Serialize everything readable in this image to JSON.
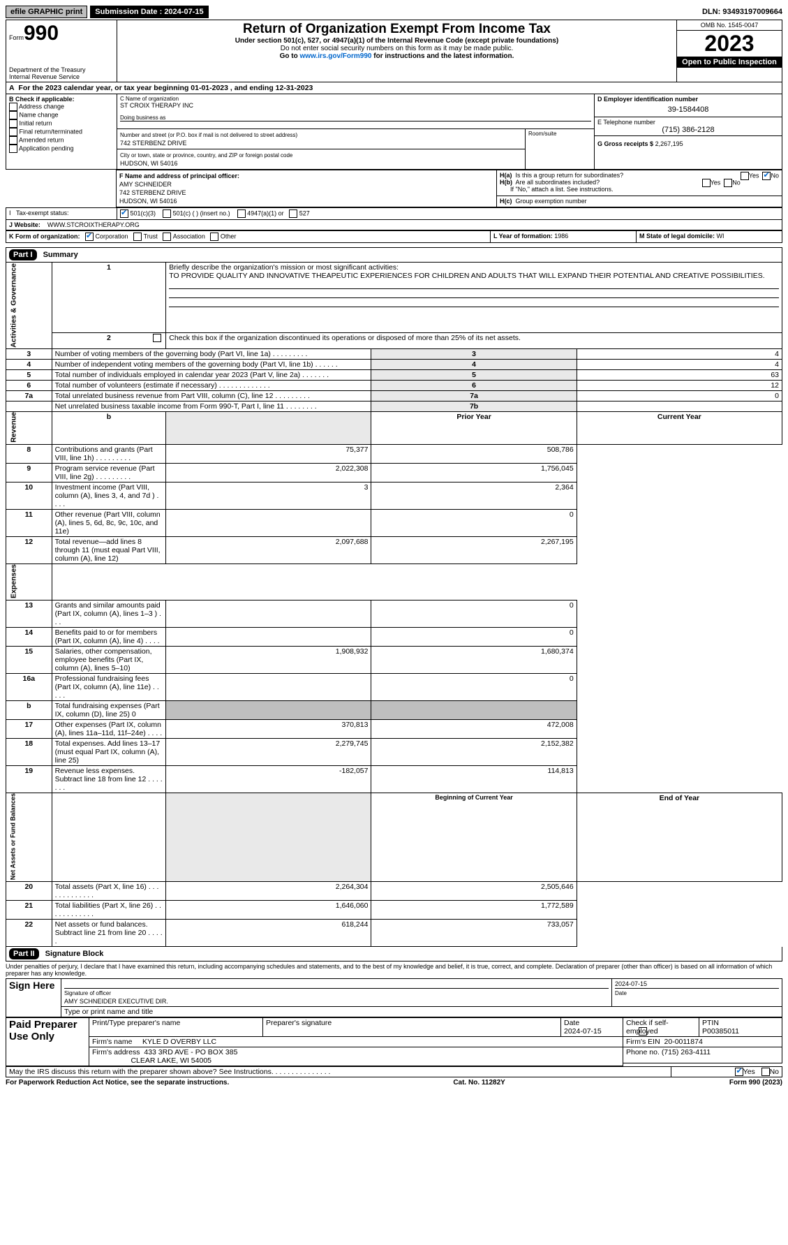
{
  "header": {
    "efile": "efile GRAPHIC print",
    "subDateLabel": "Submission Date : 2024-07-15",
    "dln": "DLN: 93493197009664"
  },
  "mast": {
    "formWord": "Form",
    "formNum": "990",
    "dept": "Department of the Treasury\nInternal Revenue Service",
    "title": "Return of Organization Exempt From Income Tax",
    "sub1": "Under section 501(c), 527, or 4947(a)(1) of the Internal Revenue Code (except private foundations)",
    "sub2": "Do not enter social security numbers on this form as it may be made public.",
    "sub3_pre": "Go to ",
    "sub3_link": "www.irs.gov/Form990",
    "sub3_post": " for instructions and the latest information.",
    "omb": "OMB No. 1545-0047",
    "year": "2023",
    "openPublic": "Open to Public Inspection"
  },
  "lineA": {
    "text_pre": "For the 2023 calendar year, or tax year beginning ",
    "beg": "01-01-2023",
    "mid": " , and ending ",
    "end": "12-31-2023"
  },
  "boxB": {
    "title": "B Check if applicable:",
    "items": [
      "Address change",
      "Name change",
      "Initial return",
      "Final return/terminated",
      "Amended return",
      "Application pending"
    ]
  },
  "boxC": {
    "orgLabel": "C Name of organization",
    "org": "ST CROIX THERAPY INC",
    "dbaLabel": "Doing business as",
    "addrLabel": "Number and street (or P.O. box if mail is not delivered to street address)",
    "suiteLabel": "Room/suite",
    "addr": "742 STERBENZ DRIVE",
    "cityLabel": "City or town, state or province, country, and ZIP or foreign postal code",
    "city": "HUDSON, WI  54016"
  },
  "boxD": {
    "label": "D Employer identification number",
    "val": "39-1584408"
  },
  "boxE": {
    "label": "E Telephone number",
    "val": "(715) 386-2128"
  },
  "boxG": {
    "label": "G Gross receipts $",
    "val": "2,267,195"
  },
  "boxF": {
    "label": "F Name and address of principal officer:",
    "name": "AMY SCHNEIDER",
    "addr": "742 STERBENZ DRIVE",
    "city": "HUDSON, WI  54016"
  },
  "boxH": {
    "aLabel": "H(a)",
    "aText": "Is this a group return for subordinates?",
    "bLabel": "H(b)",
    "bText": "Are all subordinates included?",
    "bNote": "If \"No,\" attach a list. See instructions.",
    "cLabel": "H(c)",
    "cText": "Group exemption number",
    "yes": "Yes",
    "no": "No"
  },
  "boxI": {
    "label": "Tax-exempt status:",
    "opts": [
      "501(c)(3)",
      "501(c) (  ) (insert no.)",
      "4947(a)(1) or",
      "527"
    ]
  },
  "boxJ": {
    "label": "J    Website:",
    "val": "WWW.STCROIXTHERAPY.ORG"
  },
  "boxK": {
    "label": "K Form of organization:",
    "opts": [
      "Corporation",
      "Trust",
      "Association",
      "Other"
    ]
  },
  "boxL": {
    "label": "L Year of formation:",
    "val": "1986"
  },
  "boxM": {
    "label": "M State of legal domicile:",
    "val": "WI"
  },
  "part1": {
    "hdr": "Part I",
    "title": "Summary",
    "side1": "Activities & Governance",
    "side2": "Revenue",
    "side3": "Expenses",
    "side4": "Net Assets or Fund Balances",
    "l1": "Briefly describe the organization's mission or most significant activities:",
    "l1val": "TO PROVIDE QUALITY AND INNOVATIVE THEAPEUTIC EXPERIENCES FOR CHILDREN AND ADULTS THAT WILL EXPAND THEIR POTENTIAL AND CREATIVE POSSIBILITIES.",
    "l2": "Check this box    if the organization discontinued its operations or disposed of more than 25% of its net assets.",
    "rows_ag": [
      {
        "n": "3",
        "t": "Number of voting members of the governing body (Part VI, line 1a)  .   .   .   .   .   .   .   .   .",
        "r": "3",
        "v": "4"
      },
      {
        "n": "4",
        "t": "Number of independent voting members of the governing body (Part VI, line 1b)  .   .   .   .   .   .",
        "r": "4",
        "v": "4"
      },
      {
        "n": "5",
        "t": "Total number of individuals employed in calendar year 2023 (Part V, line 2a)  .   .   .   .   .   .   .",
        "r": "5",
        "v": "63"
      },
      {
        "n": "6",
        "t": "Total number of volunteers (estimate if necessary)  .   .   .   .   .   .   .   .   .   .   .   .   .",
        "r": "6",
        "v": "12"
      },
      {
        "n": "7a",
        "t": "Total unrelated business revenue from Part VIII, column (C), line 12  .   .   .   .   .   .   .   .   .",
        "r": "7a",
        "v": "0"
      },
      {
        "n": "",
        "t": "Net unrelated business taxable income from Form 990-T, Part I, line 11  .   .   .   .   .   .   .   .",
        "r": "7b",
        "v": ""
      }
    ],
    "colHdr": {
      "n": "b",
      "py": "Prior Year",
      "cy": "Current Year"
    },
    "rev": [
      {
        "n": "8",
        "t": "Contributions and grants (Part VIII, line 1h)  .   .   .   .   .   .   .   .   .",
        "p": "75,377",
        "c": "508,786"
      },
      {
        "n": "9",
        "t": "Program service revenue (Part VIII, line 2g)  .   .   .   .   .   .   .   .   .",
        "p": "2,022,308",
        "c": "1,756,045"
      },
      {
        "n": "10",
        "t": "Investment income (Part VIII, column (A), lines 3, 4, and 7d )  .   .   .   .",
        "p": "3",
        "c": "2,364"
      },
      {
        "n": "11",
        "t": "Other revenue (Part VIII, column (A), lines 5, 6d, 8c, 9c, 10c, and 11e)",
        "p": "",
        "c": "0"
      },
      {
        "n": "12",
        "t": "Total revenue—add lines 8 through 11 (must equal Part VIII, column (A), line 12)",
        "p": "2,097,688",
        "c": "2,267,195"
      }
    ],
    "exp": [
      {
        "n": "13",
        "t": "Grants and similar amounts paid (Part IX, column (A), lines 1–3 )  .   .   .",
        "p": "",
        "c": "0"
      },
      {
        "n": "14",
        "t": "Benefits paid to or for members (Part IX, column (A), line 4)  .   .   .   .",
        "p": "",
        "c": "0"
      },
      {
        "n": "15",
        "t": "Salaries, other compensation, employee benefits (Part IX, column (A), lines 5–10)",
        "p": "1,908,932",
        "c": "1,680,374"
      },
      {
        "n": "16a",
        "t": "Professional fundraising fees (Part IX, column (A), line 11e)  .   .   .   .   .",
        "p": "",
        "c": "0"
      },
      {
        "n": "b",
        "t": "Total fundraising expenses (Part IX, column (D), line 25) 0",
        "p": "__shade__",
        "c": "__shade__"
      },
      {
        "n": "17",
        "t": "Other expenses (Part IX, column (A), lines 11a–11d, 11f–24e)   .   .   .   .",
        "p": "370,813",
        "c": "472,008"
      },
      {
        "n": "18",
        "t": "Total expenses. Add lines 13–17 (must equal Part IX, column (A), line 25)",
        "p": "2,279,745",
        "c": "2,152,382"
      },
      {
        "n": "19",
        "t": "Revenue less expenses. Subtract line 18 from line 12  .   .   .   .   .   .   .",
        "p": "-182,057",
        "c": "114,813"
      }
    ],
    "naHdr": {
      "p": "Beginning of Current Year",
      "c": "End of Year"
    },
    "na": [
      {
        "n": "20",
        "t": "Total assets (Part X, line 16)  .   .   .   .   .   .   .   .   .   .   .   .   .",
        "p": "2,264,304",
        "c": "2,505,646"
      },
      {
        "n": "21",
        "t": "Total liabilities (Part X, line 26)  .   .   .   .   .   .   .   .   .   .   .   .",
        "p": "1,646,060",
        "c": "1,772,589"
      },
      {
        "n": "22",
        "t": "Net assets or fund balances. Subtract line 21 from line 20  .   .   .   .   .",
        "p": "618,244",
        "c": "733,057"
      }
    ]
  },
  "part2": {
    "hdr": "Part II",
    "title": "Signature Block",
    "decl": "Under penalties of perjury, I declare that I have examined this return, including accompanying schedules and statements, and to the best of my knowledge and belief, it is true, correct, and complete. Declaration of preparer (other than officer) is based on all information of which preparer has any knowledge.",
    "signHere": "Sign Here",
    "sigLbl": "Signature of officer",
    "sigName": "AMY SCHNEIDER  EXECUTIVE DIR.",
    "sigTitleLbl": "Type or print name and title",
    "dateLbl": "Date",
    "dateVal": "2024-07-15",
    "paid": "Paid Preparer Use Only",
    "prepNameLbl": "Print/Type preparer's name",
    "prepSigLbl": "Preparer's signature",
    "prepDateLbl": "Date",
    "prepDate": "2024-07-15",
    "chkLbl": "Check      if self-employed",
    "ptinLbl": "PTIN",
    "ptin": "P00385011",
    "firmNameLbl": "Firm's name",
    "firmName": "KYLE D OVERBY LLC",
    "firmEinLbl": "Firm's EIN",
    "firmEin": "20-0011874",
    "firmAddrLbl": "Firm's address",
    "firmAddr1": "433 3RD AVE - PO BOX 385",
    "firmAddr2": "CLEAR LAKE, WI  54005",
    "phoneLbl": "Phone no.",
    "phone": "(715) 263-4111",
    "discuss": "May the IRS discuss this return with the preparer shown above? See Instructions.  .   .   .   .   .   .   .   .   .   .   .   .   .   .",
    "yes": "Yes",
    "no": "No"
  },
  "footer": {
    "left": "For Paperwork Reduction Act Notice, see the separate instructions.",
    "mid": "Cat. No. 11282Y",
    "right": "Form 990 (2023)"
  }
}
